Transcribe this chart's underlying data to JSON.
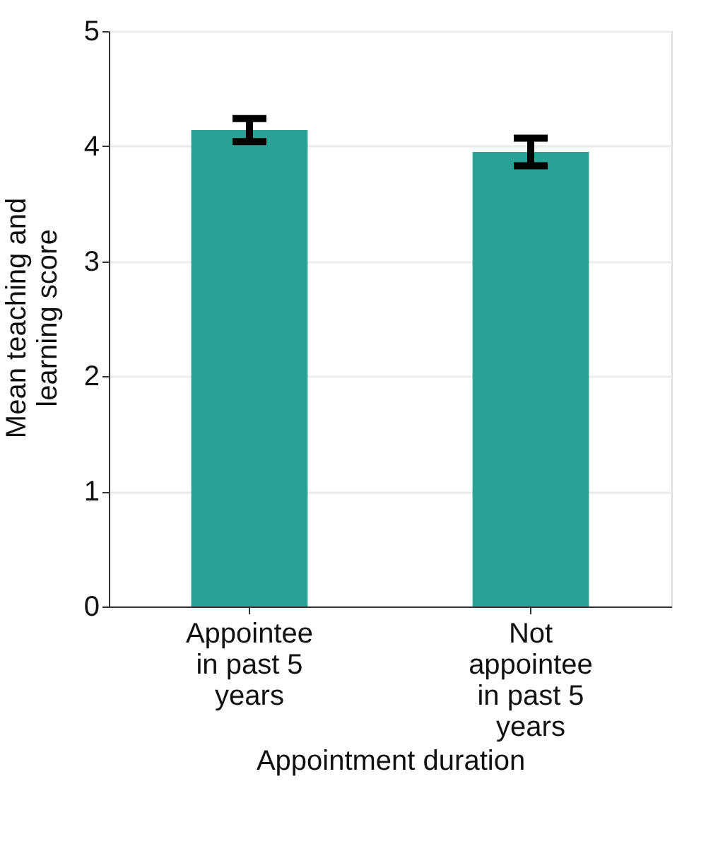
{
  "chart_data": {
    "type": "bar",
    "xlabel": "Appointment duration",
    "ylabel": "Mean teaching and learning score",
    "categories": [
      "Appointee in past 5 years",
      "Not appointee in past 5 years"
    ],
    "series": [
      {
        "color": "#29a396",
        "values": [
          4.14,
          3.95
        ],
        "errors": [
          0.1,
          0.12
        ]
      }
    ],
    "ylim": [
      0,
      5
    ],
    "yticks": [
      0,
      1,
      2,
      3,
      4,
      5
    ],
    "grid": "y",
    "legend": false
  }
}
